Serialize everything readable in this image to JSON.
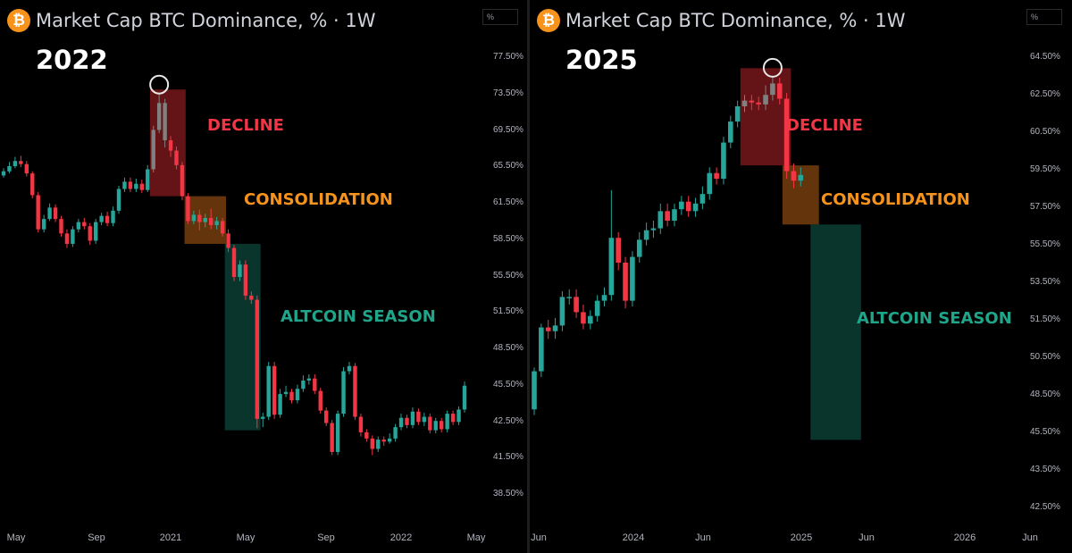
{
  "colors": {
    "up": "#26a69a",
    "down": "#f23645",
    "ghost": "#808080",
    "decline_zone": "#8b1a1f",
    "consolidation_zone": "#8a4a10",
    "altcoin_zone": "#0e4a3e",
    "decline_text": "#f23645",
    "consolidation_text": "#f7931a",
    "altcoin_text": "#1fa68a"
  },
  "icons": [
    "bitcoin-icon"
  ],
  "chart_data": [
    {
      "type": "candlestick",
      "title": "Market Cap BTC Dominance, % · 1W",
      "year_label": "2022",
      "axis_unit": "%",
      "y_ticks": [
        "77.50%",
        "73.50%",
        "69.50%",
        "65.50%",
        "61.50%",
        "58.50%",
        "55.50%",
        "51.50%",
        "48.50%",
        "45.50%",
        "42.50%",
        "41.50%",
        "38.50%"
      ],
      "x_ticks": [
        "May",
        "Sep",
        "2021",
        "May",
        "Sep",
        "2022",
        "May"
      ],
      "annotations": [
        "DECLINE",
        "CONSOLIDATION",
        "ALTCOIN SEASON"
      ],
      "grid": false,
      "candles": [
        {
          "o": 66.2,
          "c": 66.6,
          "h": 66.9,
          "l": 66.0
        },
        {
          "o": 66.6,
          "c": 67.1,
          "h": 67.5,
          "l": 66.4
        },
        {
          "o": 67.1,
          "c": 67.6,
          "h": 68.0,
          "l": 66.9
        },
        {
          "o": 67.6,
          "c": 67.3,
          "h": 68.1,
          "l": 67.0
        },
        {
          "o": 67.3,
          "c": 66.4,
          "h": 67.6,
          "l": 66.1
        },
        {
          "o": 66.4,
          "c": 64.3,
          "h": 66.6,
          "l": 64.0
        },
        {
          "o": 64.3,
          "c": 61.0,
          "h": 64.6,
          "l": 60.7
        },
        {
          "o": 61.0,
          "c": 62.0,
          "h": 62.4,
          "l": 60.7
        },
        {
          "o": 62.0,
          "c": 63.1,
          "h": 63.5,
          "l": 61.8
        },
        {
          "o": 63.1,
          "c": 62.0,
          "h": 63.4,
          "l": 61.7
        },
        {
          "o": 62.0,
          "c": 60.6,
          "h": 62.3,
          "l": 60.3
        },
        {
          "o": 60.6,
          "c": 59.6,
          "h": 61.0,
          "l": 59.2
        },
        {
          "o": 59.6,
          "c": 61.0,
          "h": 61.3,
          "l": 59.3
        },
        {
          "o": 61.0,
          "c": 61.7,
          "h": 62.0,
          "l": 60.7
        },
        {
          "o": 61.7,
          "c": 61.3,
          "h": 62.1,
          "l": 61.0
        },
        {
          "o": 61.3,
          "c": 59.9,
          "h": 61.6,
          "l": 59.5
        },
        {
          "o": 59.9,
          "c": 61.7,
          "h": 62.0,
          "l": 59.6
        },
        {
          "o": 61.7,
          "c": 62.3,
          "h": 62.6,
          "l": 61.4
        },
        {
          "o": 62.3,
          "c": 61.6,
          "h": 62.7,
          "l": 61.3
        },
        {
          "o": 61.6,
          "c": 62.8,
          "h": 63.2,
          "l": 61.3
        },
        {
          "o": 62.8,
          "c": 64.9,
          "h": 65.2,
          "l": 62.5
        },
        {
          "o": 64.9,
          "c": 65.6,
          "h": 66.0,
          "l": 64.6
        },
        {
          "o": 65.6,
          "c": 64.9,
          "h": 66.0,
          "l": 64.6
        },
        {
          "o": 64.9,
          "c": 65.4,
          "h": 65.9,
          "l": 64.6
        },
        {
          "o": 65.4,
          "c": 64.8,
          "h": 65.8,
          "l": 64.5
        },
        {
          "o": 64.8,
          "c": 66.8,
          "h": 67.2,
          "l": 64.6
        },
        {
          "o": 66.8,
          "c": 70.6,
          "h": 71.0,
          "l": 66.5
        },
        {
          "o": 70.6,
          "c": 73.2,
          "h": 74.2,
          "l": 70.3
        },
        {
          "o": 73.2,
          "c": 69.6,
          "h": 73.6,
          "l": 68.9
        },
        {
          "o": 69.6,
          "c": 68.6,
          "h": 70.0,
          "l": 68.0
        },
        {
          "o": 68.6,
          "c": 67.2,
          "h": 69.0,
          "l": 66.8
        },
        {
          "o": 67.2,
          "c": 64.2,
          "h": 67.5,
          "l": 63.8
        },
        {
          "o": 64.2,
          "c": 61.8,
          "h": 64.5,
          "l": 61.5
        },
        {
          "o": 61.8,
          "c": 62.4,
          "h": 62.8,
          "l": 61.5
        },
        {
          "o": 62.4,
          "c": 61.7,
          "h": 62.9,
          "l": 60.9
        },
        {
          "o": 61.7,
          "c": 62.1,
          "h": 62.5,
          "l": 61.2
        },
        {
          "o": 62.1,
          "c": 61.4,
          "h": 63.0,
          "l": 61.0
        },
        {
          "o": 61.4,
          "c": 61.8,
          "h": 62.2,
          "l": 61.0
        },
        {
          "o": 61.8,
          "c": 60.6,
          "h": 62.1,
          "l": 60.3
        },
        {
          "o": 60.6,
          "c": 59.2,
          "h": 61.0,
          "l": 58.8
        },
        {
          "o": 59.2,
          "c": 56.4,
          "h": 59.5,
          "l": 56.0
        },
        {
          "o": 56.4,
          "c": 57.6,
          "h": 58.0,
          "l": 56.0
        },
        {
          "o": 57.6,
          "c": 54.6,
          "h": 58.0,
          "l": 54.2
        },
        {
          "o": 54.6,
          "c": 54.2,
          "h": 55.0,
          "l": 53.8
        },
        {
          "o": 54.2,
          "c": 42.7,
          "h": 54.6,
          "l": 41.8
        },
        {
          "o": 42.7,
          "c": 42.9,
          "h": 43.3,
          "l": 41.9
        },
        {
          "o": 42.9,
          "c": 47.8,
          "h": 48.2,
          "l": 42.6
        },
        {
          "o": 47.8,
          "c": 43.1,
          "h": 48.2,
          "l": 42.7
        },
        {
          "o": 43.1,
          "c": 45.1,
          "h": 45.6,
          "l": 42.8
        },
        {
          "o": 45.1,
          "c": 45.3,
          "h": 45.9,
          "l": 44.8
        },
        {
          "o": 45.3,
          "c": 44.5,
          "h": 45.6,
          "l": 44.2
        },
        {
          "o": 44.5,
          "c": 45.6,
          "h": 46.0,
          "l": 44.2
        },
        {
          "o": 45.6,
          "c": 46.4,
          "h": 46.9,
          "l": 45.3
        },
        {
          "o": 46.4,
          "c": 46.6,
          "h": 47.0,
          "l": 46.0
        },
        {
          "o": 46.6,
          "c": 45.4,
          "h": 47.0,
          "l": 45.1
        },
        {
          "o": 45.4,
          "c": 43.5,
          "h": 45.7,
          "l": 43.2
        },
        {
          "o": 43.5,
          "c": 42.3,
          "h": 43.8,
          "l": 42.0
        },
        {
          "o": 42.3,
          "c": 39.5,
          "h": 42.6,
          "l": 39.2
        },
        {
          "o": 39.5,
          "c": 43.2,
          "h": 43.5,
          "l": 39.2
        },
        {
          "o": 43.2,
          "c": 47.3,
          "h": 47.7,
          "l": 42.9
        },
        {
          "o": 47.3,
          "c": 47.8,
          "h": 48.2,
          "l": 47.0
        },
        {
          "o": 47.8,
          "c": 42.9,
          "h": 48.1,
          "l": 42.6
        },
        {
          "o": 42.9,
          "c": 41.4,
          "h": 43.2,
          "l": 41.0
        },
        {
          "o": 41.4,
          "c": 40.8,
          "h": 41.7,
          "l": 40.5
        },
        {
          "o": 40.8,
          "c": 39.8,
          "h": 41.1,
          "l": 39.2
        },
        {
          "o": 39.8,
          "c": 40.7,
          "h": 41.0,
          "l": 39.5
        },
        {
          "o": 40.7,
          "c": 40.5,
          "h": 41.0,
          "l": 40.1
        },
        {
          "o": 40.5,
          "c": 40.8,
          "h": 41.3,
          "l": 40.3
        },
        {
          "o": 40.8,
          "c": 41.9,
          "h": 42.2,
          "l": 40.5
        },
        {
          "o": 41.9,
          "c": 42.8,
          "h": 43.2,
          "l": 41.6
        },
        {
          "o": 42.8,
          "c": 42.1,
          "h": 43.1,
          "l": 41.8
        },
        {
          "o": 42.1,
          "c": 43.4,
          "h": 43.8,
          "l": 41.8
        },
        {
          "o": 43.4,
          "c": 42.4,
          "h": 43.7,
          "l": 42.1
        },
        {
          "o": 42.4,
          "c": 42.9,
          "h": 43.3,
          "l": 42.0
        },
        {
          "o": 42.9,
          "c": 41.6,
          "h": 43.2,
          "l": 41.3
        },
        {
          "o": 41.6,
          "c": 42.5,
          "h": 42.8,
          "l": 41.3
        },
        {
          "o": 42.5,
          "c": 41.7,
          "h": 42.8,
          "l": 41.4
        },
        {
          "o": 41.7,
          "c": 43.2,
          "h": 43.5,
          "l": 41.4
        },
        {
          "o": 43.2,
          "c": 42.4,
          "h": 43.5,
          "l": 42.1
        },
        {
          "o": 42.4,
          "c": 43.6,
          "h": 43.9,
          "l": 42.1
        },
        {
          "o": 43.6,
          "c": 45.9,
          "h": 46.3,
          "l": 43.3
        }
      ],
      "zones": [
        {
          "label": "DECLINE",
          "start": 26,
          "end": 31,
          "top": 74.5,
          "bottom": 64.2
        },
        {
          "label": "CONSOLIDATION",
          "start": 32,
          "end": 38,
          "top": 64.2,
          "bottom": 59.6
        },
        {
          "label": "ALTCOIN SEASON",
          "start": 39,
          "end": 44,
          "top": 59.6,
          "bottom": 41.6
        }
      ]
    },
    {
      "type": "candlestick",
      "title": "Market Cap BTC Dominance, % · 1W",
      "year_label": "2025",
      "axis_unit": "%",
      "y_ticks": [
        "64.50%",
        "62.50%",
        "60.50%",
        "59.50%",
        "57.50%",
        "55.50%",
        "53.50%",
        "51.50%",
        "50.50%",
        "48.50%",
        "45.50%",
        "43.50%",
        "42.50%"
      ],
      "x_ticks": [
        "Jun",
        "2024",
        "Jun",
        "2025",
        "Jun",
        "2026",
        "Jun"
      ],
      "annotations": [
        "DECLINE",
        "CONSOLIDATION",
        "ALTCOIN SEASON"
      ],
      "grid": false,
      "candles": [
        {
          "o": 46.1,
          "c": 48.1,
          "h": 48.3,
          "l": 45.8
        },
        {
          "o": 48.1,
          "c": 50.4,
          "h": 50.6,
          "l": 47.8
        },
        {
          "o": 50.4,
          "c": 50.2,
          "h": 50.8,
          "l": 49.8
        },
        {
          "o": 50.2,
          "c": 50.5,
          "h": 50.9,
          "l": 49.8
        },
        {
          "o": 50.5,
          "c": 52.0,
          "h": 52.3,
          "l": 50.2
        },
        {
          "o": 52.0,
          "c": 52.0,
          "h": 52.4,
          "l": 51.6
        },
        {
          "o": 52.0,
          "c": 51.2,
          "h": 52.4,
          "l": 50.9
        },
        {
          "o": 51.2,
          "c": 50.6,
          "h": 51.6,
          "l": 50.3
        },
        {
          "o": 50.6,
          "c": 51.0,
          "h": 51.3,
          "l": 50.3
        },
        {
          "o": 51.0,
          "c": 51.8,
          "h": 52.1,
          "l": 50.7
        },
        {
          "o": 51.8,
          "c": 52.1,
          "h": 52.5,
          "l": 51.5
        },
        {
          "o": 52.1,
          "c": 55.1,
          "h": 57.6,
          "l": 51.8
        },
        {
          "o": 55.1,
          "c": 53.8,
          "h": 55.4,
          "l": 53.4
        },
        {
          "o": 53.8,
          "c": 51.8,
          "h": 54.1,
          "l": 51.4
        },
        {
          "o": 51.8,
          "c": 54.1,
          "h": 54.4,
          "l": 51.5
        },
        {
          "o": 54.1,
          "c": 55.0,
          "h": 55.4,
          "l": 53.8
        },
        {
          "o": 55.0,
          "c": 55.5,
          "h": 55.9,
          "l": 54.7
        },
        {
          "o": 55.5,
          "c": 55.6,
          "h": 56.0,
          "l": 55.1
        },
        {
          "o": 55.6,
          "c": 56.5,
          "h": 56.9,
          "l": 55.3
        },
        {
          "o": 56.5,
          "c": 56.0,
          "h": 56.9,
          "l": 55.7
        },
        {
          "o": 56.0,
          "c": 56.6,
          "h": 56.9,
          "l": 55.7
        },
        {
          "o": 56.6,
          "c": 57.0,
          "h": 57.3,
          "l": 56.3
        },
        {
          "o": 57.0,
          "c": 56.5,
          "h": 57.3,
          "l": 56.2
        },
        {
          "o": 56.5,
          "c": 56.9,
          "h": 57.2,
          "l": 56.2
        },
        {
          "o": 56.9,
          "c": 57.4,
          "h": 57.8,
          "l": 56.6
        },
        {
          "o": 57.4,
          "c": 58.5,
          "h": 58.8,
          "l": 57.1
        },
        {
          "o": 58.5,
          "c": 58.2,
          "h": 58.8,
          "l": 57.9
        },
        {
          "o": 58.2,
          "c": 60.1,
          "h": 60.4,
          "l": 57.9
        },
        {
          "o": 60.1,
          "c": 61.2,
          "h": 61.5,
          "l": 59.8
        },
        {
          "o": 61.2,
          "c": 62.0,
          "h": 62.3,
          "l": 60.9
        },
        {
          "o": 62.0,
          "c": 62.3,
          "h": 62.6,
          "l": 61.7
        },
        {
          "o": 62.3,
          "c": 62.2,
          "h": 62.6,
          "l": 61.8
        },
        {
          "o": 62.2,
          "c": 62.1,
          "h": 62.5,
          "l": 61.8
        },
        {
          "o": 62.1,
          "c": 62.6,
          "h": 63.1,
          "l": 61.8
        },
        {
          "o": 62.6,
          "c": 63.2,
          "h": 63.6,
          "l": 62.3
        },
        {
          "o": 63.2,
          "c": 62.4,
          "h": 63.5,
          "l": 62.1
        },
        {
          "o": 62.4,
          "c": 58.6,
          "h": 62.7,
          "l": 58.2
        },
        {
          "o": 58.6,
          "c": 58.1,
          "h": 59.0,
          "l": 57.7
        },
        {
          "o": 58.1,
          "c": 58.4,
          "h": 58.8,
          "l": 57.8
        }
      ],
      "zones": [
        {
          "label": "DECLINE",
          "start": 30,
          "end": 36,
          "top": 64.0,
          "bottom": 58.9
        },
        {
          "label": "CONSOLIDATION",
          "start": 36,
          "end": 40,
          "top": 58.9,
          "bottom": 55.8
        },
        {
          "label": "ALTCOIN SEASON",
          "start": 40,
          "end": 46,
          "top": 55.8,
          "bottom": 44.5
        }
      ]
    }
  ]
}
